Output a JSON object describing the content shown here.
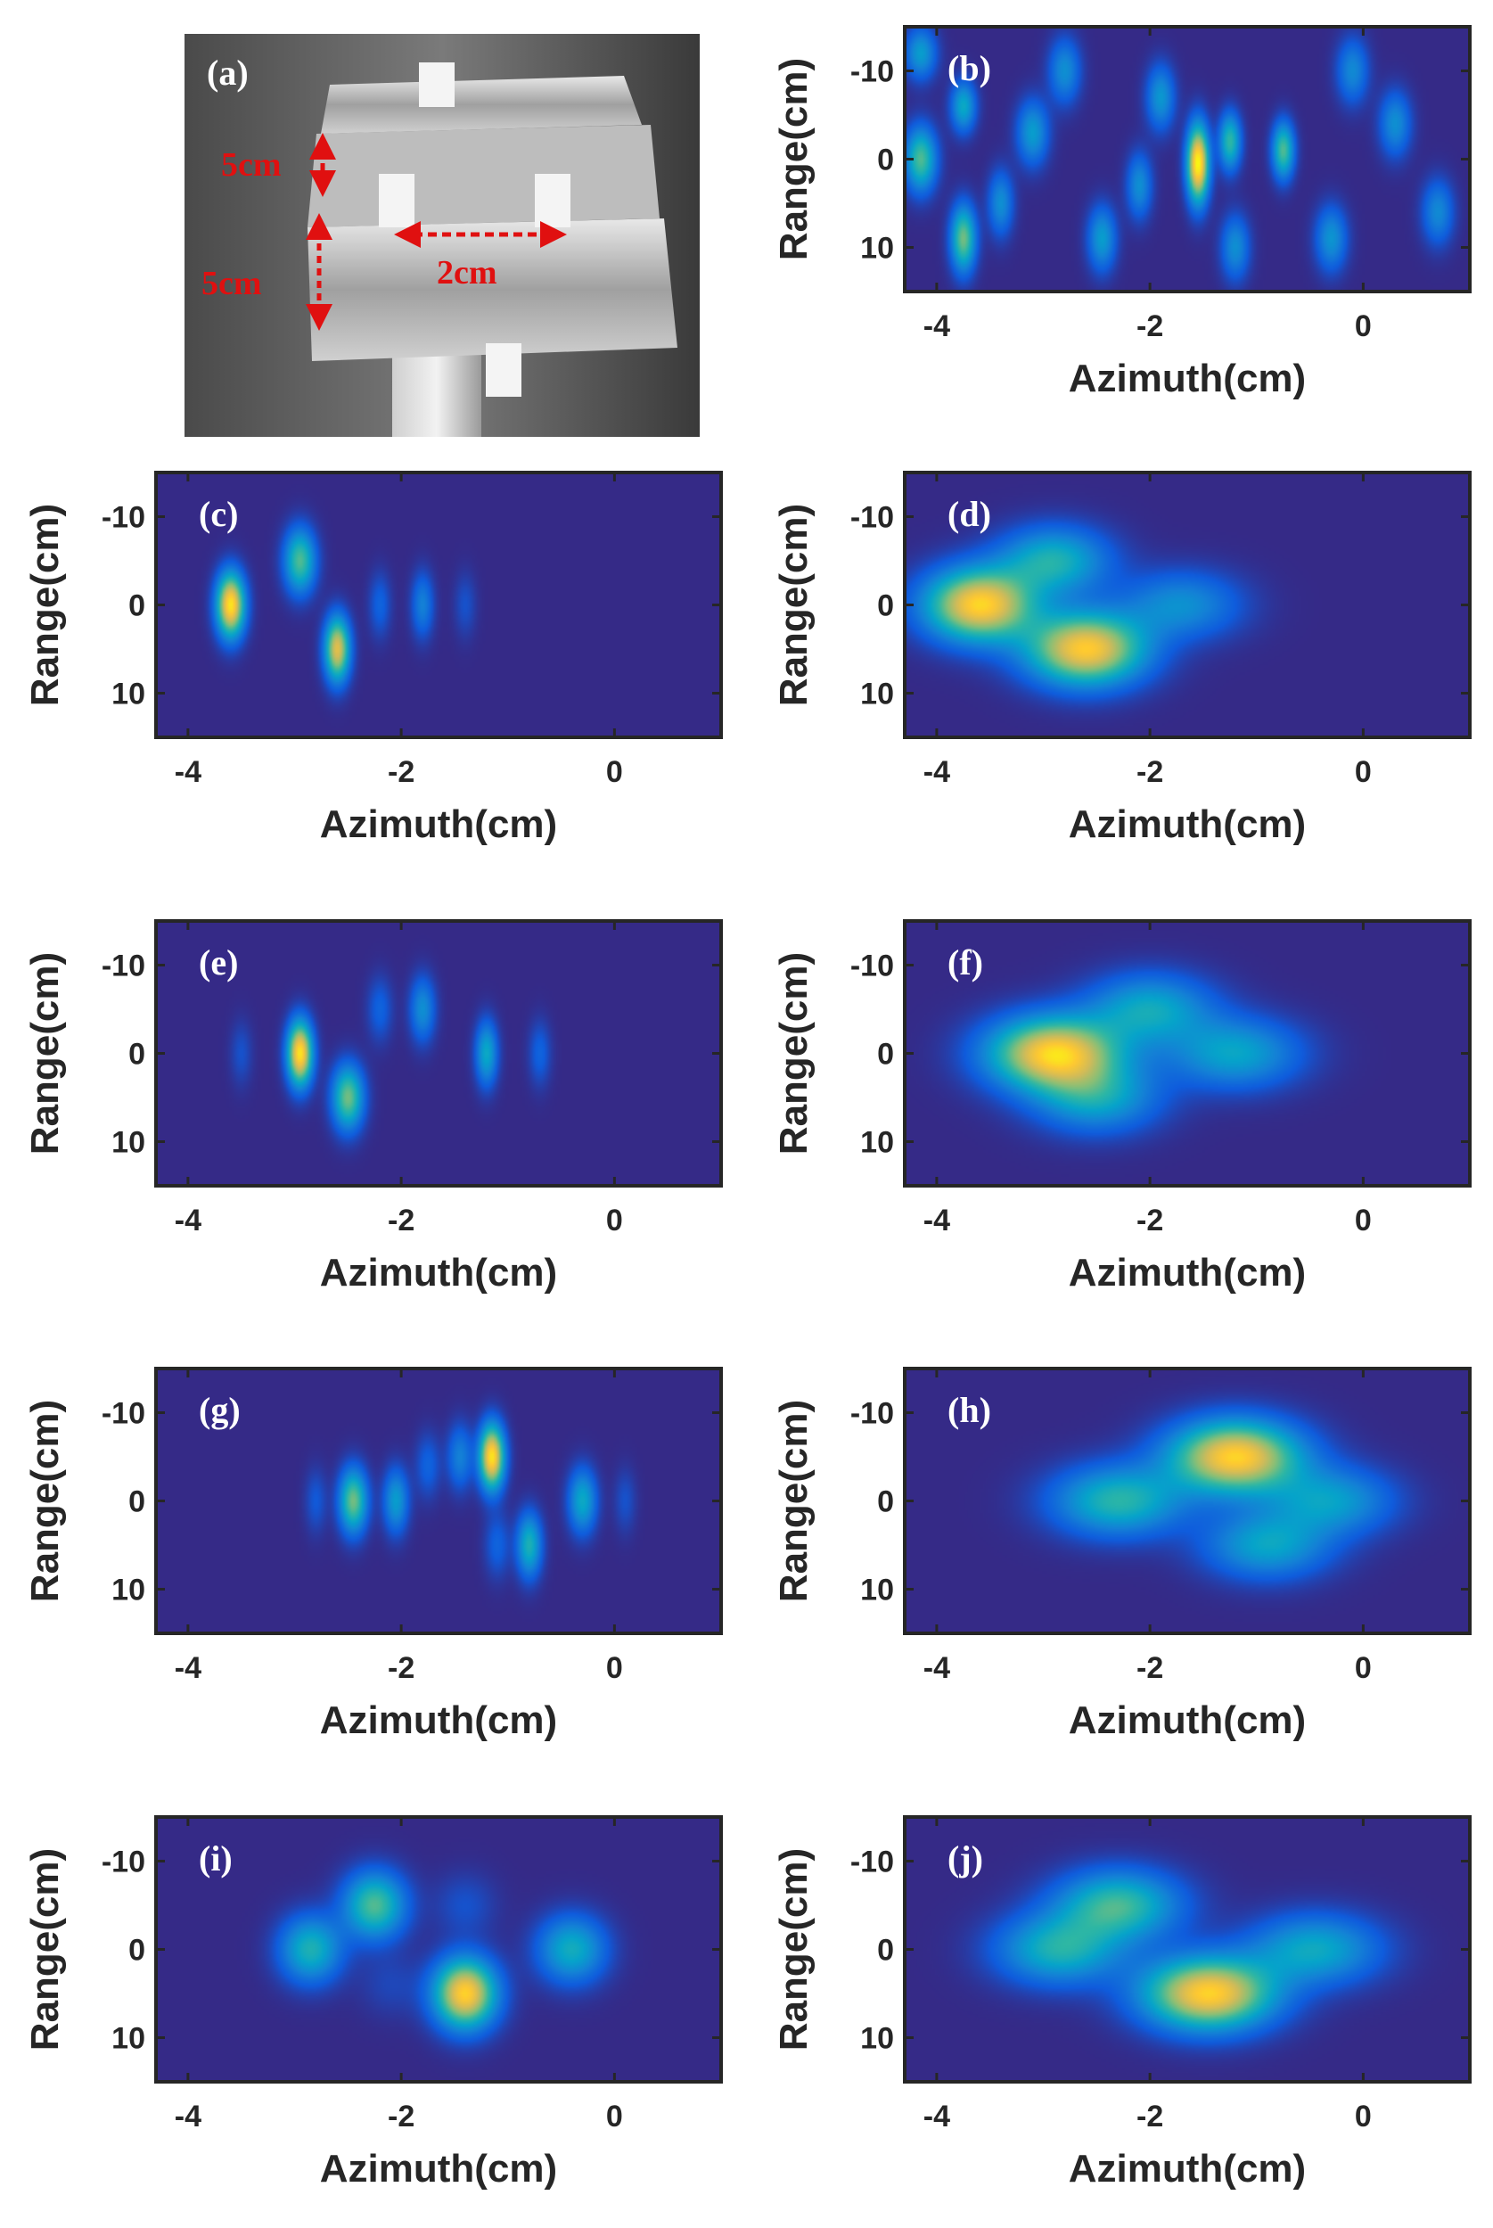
{
  "photo": {
    "label": "(a)",
    "annotations": [
      "5cm",
      "5cm",
      "2cm"
    ]
  },
  "colors": {
    "background": "#3f26a8",
    "colormap": [
      "#352a87",
      "#0f5cdd",
      "#1481d6",
      "#06a4ca",
      "#2eb7a4",
      "#87bf77",
      "#d1bb59",
      "#fec832",
      "#f9fb0e"
    ],
    "axes": "#262626",
    "annotation": "#e01010"
  },
  "chart_data": [
    {
      "panel": "(b)",
      "type": "heatmap",
      "xlabel": "Azimuth(cm)",
      "ylabel": "Range(cm)",
      "xlim": [
        -4.3,
        1.0
      ],
      "ylim": [
        -15,
        15
      ],
      "xticks": [
        "-4",
        "-2",
        "0"
      ],
      "yticks": [
        "-10",
        "0",
        "10"
      ],
      "peaks": [
        {
          "x": -1.55,
          "y": 0.5,
          "sx": 0.07,
          "sy": 3.0,
          "a": 1.0
        },
        {
          "x": -1.25,
          "y": -2.0,
          "sx": 0.07,
          "sy": 2.2,
          "a": 0.5
        },
        {
          "x": -0.75,
          "y": -1.0,
          "sx": 0.07,
          "sy": 2.2,
          "a": 0.55
        },
        {
          "x": -3.75,
          "y": 9.0,
          "sx": 0.08,
          "sy": 2.6,
          "a": 0.6
        },
        {
          "x": -4.15,
          "y": 0.0,
          "sx": 0.1,
          "sy": 2.5,
          "a": 0.55
        },
        {
          "x": -3.75,
          "y": -6.0,
          "sx": 0.08,
          "sy": 2.0,
          "a": 0.4
        },
        {
          "x": -4.15,
          "y": -12.0,
          "sx": 0.1,
          "sy": 2.0,
          "a": 0.35
        },
        {
          "x": -3.1,
          "y": -3.0,
          "sx": 0.1,
          "sy": 2.5,
          "a": 0.35
        },
        {
          "x": -2.45,
          "y": 9.0,
          "sx": 0.09,
          "sy": 2.5,
          "a": 0.35
        },
        {
          "x": -1.9,
          "y": -7.0,
          "sx": 0.09,
          "sy": 2.5,
          "a": 0.33
        },
        {
          "x": -2.1,
          "y": 3.0,
          "sx": 0.08,
          "sy": 2.5,
          "a": 0.3
        },
        {
          "x": -0.3,
          "y": 9.0,
          "sx": 0.1,
          "sy": 2.5,
          "a": 0.32
        },
        {
          "x": 0.3,
          "y": -4.0,
          "sx": 0.1,
          "sy": 2.5,
          "a": 0.3
        },
        {
          "x": 0.7,
          "y": 6.0,
          "sx": 0.1,
          "sy": 2.5,
          "a": 0.28
        },
        {
          "x": -2.8,
          "y": -10.0,
          "sx": 0.1,
          "sy": 2.5,
          "a": 0.3
        },
        {
          "x": -1.2,
          "y": 10.0,
          "sx": 0.09,
          "sy": 2.5,
          "a": 0.3
        },
        {
          "x": -3.4,
          "y": 5.0,
          "sx": 0.08,
          "sy": 2.5,
          "a": 0.3
        },
        {
          "x": -0.1,
          "y": -10.0,
          "sx": 0.1,
          "sy": 2.5,
          "a": 0.28
        }
      ]
    },
    {
      "panel": "(c)",
      "type": "heatmap",
      "xlabel": "Azimuth(cm)",
      "ylabel": "Range(cm)",
      "xlim": [
        -4.3,
        1.0
      ],
      "ylim": [
        -15,
        15
      ],
      "xticks": [
        "-4",
        "-2",
        "0"
      ],
      "yticks": [
        "-10",
        "0",
        "10"
      ],
      "peaks": [
        {
          "x": -3.6,
          "y": 0.0,
          "sx": 0.09,
          "sy": 2.5,
          "a": 0.95
        },
        {
          "x": -2.95,
          "y": -5.0,
          "sx": 0.1,
          "sy": 2.5,
          "a": 0.55
        },
        {
          "x": -2.6,
          "y": 5.0,
          "sx": 0.08,
          "sy": 2.5,
          "a": 0.8
        },
        {
          "x": -1.8,
          "y": 0.0,
          "sx": 0.07,
          "sy": 2.5,
          "a": 0.25
        },
        {
          "x": -2.2,
          "y": 0.0,
          "sx": 0.07,
          "sy": 2.5,
          "a": 0.15
        },
        {
          "x": -1.4,
          "y": 0.0,
          "sx": 0.07,
          "sy": 2.5,
          "a": 0.1
        }
      ]
    },
    {
      "panel": "(d)",
      "type": "heatmap",
      "xlabel": "Azimuth(cm)",
      "ylabel": "Range(cm)",
      "xlim": [
        -4.3,
        1.0
      ],
      "ylim": [
        -15,
        15
      ],
      "xticks": [
        "-4",
        "-2",
        "0"
      ],
      "yticks": [
        "-10",
        "0",
        "10"
      ],
      "peaks": [
        {
          "x": -3.6,
          "y": 0.0,
          "sx": 0.35,
          "sy": 2.8,
          "a": 0.9
        },
        {
          "x": -2.9,
          "y": -5.0,
          "sx": 0.35,
          "sy": 2.6,
          "a": 0.45
        },
        {
          "x": -2.6,
          "y": 5.0,
          "sx": 0.38,
          "sy": 2.8,
          "a": 0.88
        },
        {
          "x": -1.7,
          "y": 0.0,
          "sx": 0.38,
          "sy": 2.6,
          "a": 0.3
        }
      ]
    },
    {
      "panel": "(e)",
      "type": "heatmap",
      "xlabel": "Azimuth(cm)",
      "ylabel": "Range(cm)",
      "xlim": [
        -4.3,
        1.0
      ],
      "ylim": [
        -15,
        15
      ],
      "xticks": [
        "-4",
        "-2",
        "0"
      ],
      "yticks": [
        "-10",
        "0",
        "10"
      ],
      "peaks": [
        {
          "x": -2.95,
          "y": 0.0,
          "sx": 0.08,
          "sy": 2.5,
          "a": 0.95
        },
        {
          "x": -2.5,
          "y": 5.0,
          "sx": 0.1,
          "sy": 2.5,
          "a": 0.6
        },
        {
          "x": -1.8,
          "y": -5.0,
          "sx": 0.08,
          "sy": 2.5,
          "a": 0.3
        },
        {
          "x": -1.2,
          "y": 0.0,
          "sx": 0.07,
          "sy": 2.5,
          "a": 0.4
        },
        {
          "x": -2.2,
          "y": -5.0,
          "sx": 0.08,
          "sy": 2.5,
          "a": 0.15
        },
        {
          "x": -0.7,
          "y": 0.0,
          "sx": 0.07,
          "sy": 2.5,
          "a": 0.15
        },
        {
          "x": -3.5,
          "y": 0.0,
          "sx": 0.07,
          "sy": 2.5,
          "a": 0.1
        }
      ]
    },
    {
      "panel": "(f)",
      "type": "heatmap",
      "xlabel": "Azimuth(cm)",
      "ylabel": "Range(cm)",
      "xlim": [
        -4.3,
        1.0
      ],
      "ylim": [
        -15,
        15
      ],
      "xticks": [
        "-4",
        "-2",
        "0"
      ],
      "yticks": [
        "-10",
        "0",
        "10"
      ],
      "peaks": [
        {
          "x": -2.9,
          "y": 0.0,
          "sx": 0.42,
          "sy": 2.8,
          "a": 0.9
        },
        {
          "x": -2.0,
          "y": -5.0,
          "sx": 0.4,
          "sy": 2.7,
          "a": 0.4
        },
        {
          "x": -1.2,
          "y": 0.0,
          "sx": 0.42,
          "sy": 2.7,
          "a": 0.38
        },
        {
          "x": -2.5,
          "y": 5.0,
          "sx": 0.4,
          "sy": 2.7,
          "a": 0.38
        }
      ]
    },
    {
      "panel": "(g)",
      "type": "heatmap",
      "xlabel": "Azimuth(cm)",
      "ylabel": "Range(cm)",
      "xlim": [
        -4.3,
        1.0
      ],
      "ylim": [
        -15,
        15
      ],
      "xticks": [
        "-4",
        "-2",
        "0"
      ],
      "yticks": [
        "-10",
        "0",
        "10"
      ],
      "peaks": [
        {
          "x": -1.15,
          "y": -5.0,
          "sx": 0.08,
          "sy": 2.5,
          "a": 0.95
        },
        {
          "x": -2.45,
          "y": 0.0,
          "sx": 0.09,
          "sy": 2.5,
          "a": 0.6
        },
        {
          "x": -2.05,
          "y": 0.0,
          "sx": 0.08,
          "sy": 2.5,
          "a": 0.35
        },
        {
          "x": -0.8,
          "y": 5.0,
          "sx": 0.08,
          "sy": 2.5,
          "a": 0.45
        },
        {
          "x": -0.3,
          "y": 0.0,
          "sx": 0.09,
          "sy": 2.5,
          "a": 0.4
        },
        {
          "x": -1.45,
          "y": -5.0,
          "sx": 0.08,
          "sy": 2.5,
          "a": 0.25
        },
        {
          "x": -1.75,
          "y": -4.0,
          "sx": 0.08,
          "sy": 2.5,
          "a": 0.15
        },
        {
          "x": -1.1,
          "y": 5.0,
          "sx": 0.08,
          "sy": 2.5,
          "a": 0.15
        },
        {
          "x": 0.1,
          "y": 0.0,
          "sx": 0.07,
          "sy": 2.5,
          "a": 0.1
        },
        {
          "x": -2.8,
          "y": 0.0,
          "sx": 0.07,
          "sy": 2.5,
          "a": 0.12
        }
      ]
    },
    {
      "panel": "(h)",
      "type": "heatmap",
      "xlabel": "Azimuth(cm)",
      "ylabel": "Range(cm)",
      "xlim": [
        -4.3,
        1.0
      ],
      "ylim": [
        -15,
        15
      ],
      "xticks": [
        "-4",
        "-2",
        "0"
      ],
      "yticks": [
        "-10",
        "0",
        "10"
      ],
      "peaks": [
        {
          "x": -1.2,
          "y": -5.0,
          "sx": 0.42,
          "sy": 2.8,
          "a": 0.9
        },
        {
          "x": -2.3,
          "y": 0.0,
          "sx": 0.42,
          "sy": 2.7,
          "a": 0.48
        },
        {
          "x": -0.3,
          "y": 0.0,
          "sx": 0.4,
          "sy": 2.6,
          "a": 0.35
        },
        {
          "x": -0.9,
          "y": 5.0,
          "sx": 0.4,
          "sy": 2.6,
          "a": 0.38
        }
      ]
    },
    {
      "panel": "(i)",
      "type": "heatmap",
      "xlabel": "Azimuth(cm)",
      "ylabel": "Range(cm)",
      "xlim": [
        -4.3,
        1.0
      ],
      "ylim": [
        -15,
        15
      ],
      "xticks": [
        "-4",
        "-2",
        "0"
      ],
      "yticks": [
        "-10",
        "0",
        "10"
      ],
      "peaks": [
        {
          "x": -1.4,
          "y": 5.0,
          "sx": 0.2,
          "sy": 2.7,
          "a": 0.9
        },
        {
          "x": -2.25,
          "y": -5.0,
          "sx": 0.2,
          "sy": 2.6,
          "a": 0.55
        },
        {
          "x": -2.85,
          "y": 0.0,
          "sx": 0.2,
          "sy": 2.6,
          "a": 0.45
        },
        {
          "x": -0.4,
          "y": 0.0,
          "sx": 0.22,
          "sy": 2.6,
          "a": 0.42
        },
        {
          "x": -1.4,
          "y": -5.0,
          "sx": 0.2,
          "sy": 2.5,
          "a": 0.1
        },
        {
          "x": -2.1,
          "y": 4.0,
          "sx": 0.2,
          "sy": 2.5,
          "a": 0.07
        }
      ]
    },
    {
      "panel": "(j)",
      "type": "heatmap",
      "xlabel": "Azimuth(cm)",
      "ylabel": "Range(cm)",
      "xlim": [
        -4.3,
        1.0
      ],
      "ylim": [
        -15,
        15
      ],
      "xticks": [
        "-4",
        "-2",
        "0"
      ],
      "yticks": [
        "-10",
        "0",
        "10"
      ],
      "peaks": [
        {
          "x": -1.45,
          "y": 5.0,
          "sx": 0.42,
          "sy": 2.8,
          "a": 0.9
        },
        {
          "x": -2.3,
          "y": -5.0,
          "sx": 0.4,
          "sy": 2.7,
          "a": 0.52
        },
        {
          "x": -2.85,
          "y": 0.0,
          "sx": 0.4,
          "sy": 2.7,
          "a": 0.45
        },
        {
          "x": -0.45,
          "y": 0.0,
          "sx": 0.42,
          "sy": 2.7,
          "a": 0.4
        }
      ]
    }
  ]
}
